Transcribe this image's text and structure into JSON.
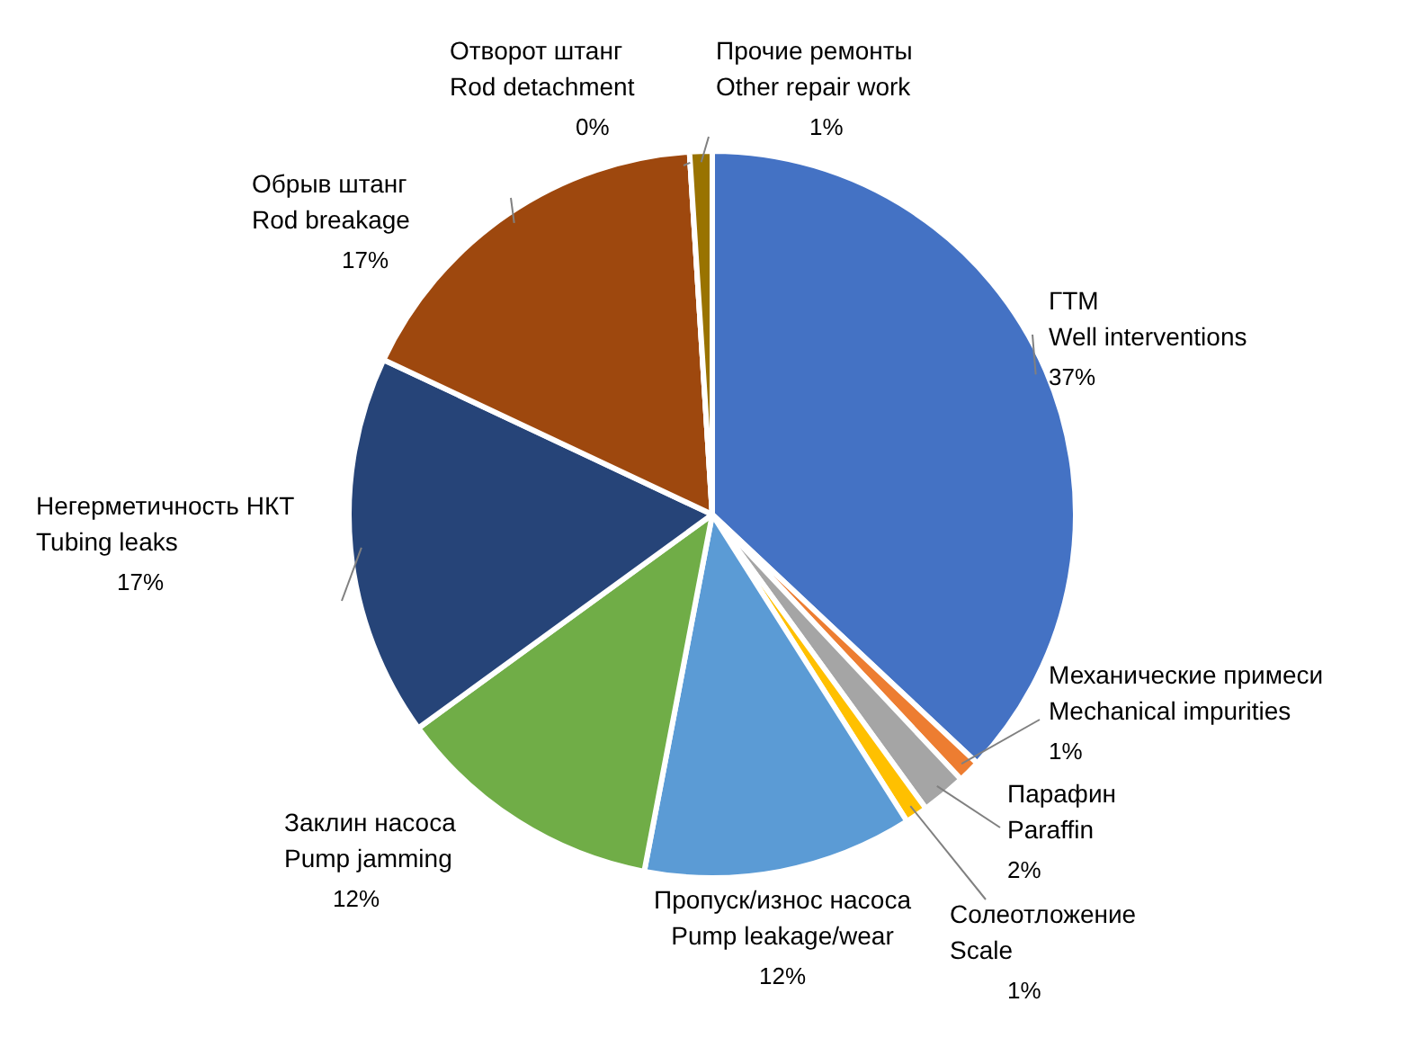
{
  "chart_data": {
    "type": "pie",
    "categories": [
      "ГТМ\nWell interventions",
      "Механические примеси\nMechanical impurities",
      "Парафин\nParaffin",
      "Солеотложение\nScale",
      "Пропуск/износ насоса\nPump leakage/wear",
      "Заклин насоса\nPump jamming",
      "Негерметичность НКТ\nTubing leaks",
      "Обрыв штанг\nRod breakage",
      "Отворот штанг\nRod detachment",
      "Прочие ремонты\nOther repair work"
    ],
    "values": [
      37,
      1,
      2,
      1,
      12,
      12,
      17,
      17,
      0,
      1
    ],
    "value_labels": [
      "37%",
      "1%",
      "2%",
      "1%",
      "12%",
      "12%",
      "17%",
      "17%",
      "0%",
      "1%"
    ],
    "colors": [
      "#4472c4",
      "#ed7d31",
      "#a5a5a5",
      "#ffc000",
      "#5b9bd5",
      "#70ad47",
      "#264478",
      "#9e480e",
      "#636363",
      "#997300"
    ]
  }
}
